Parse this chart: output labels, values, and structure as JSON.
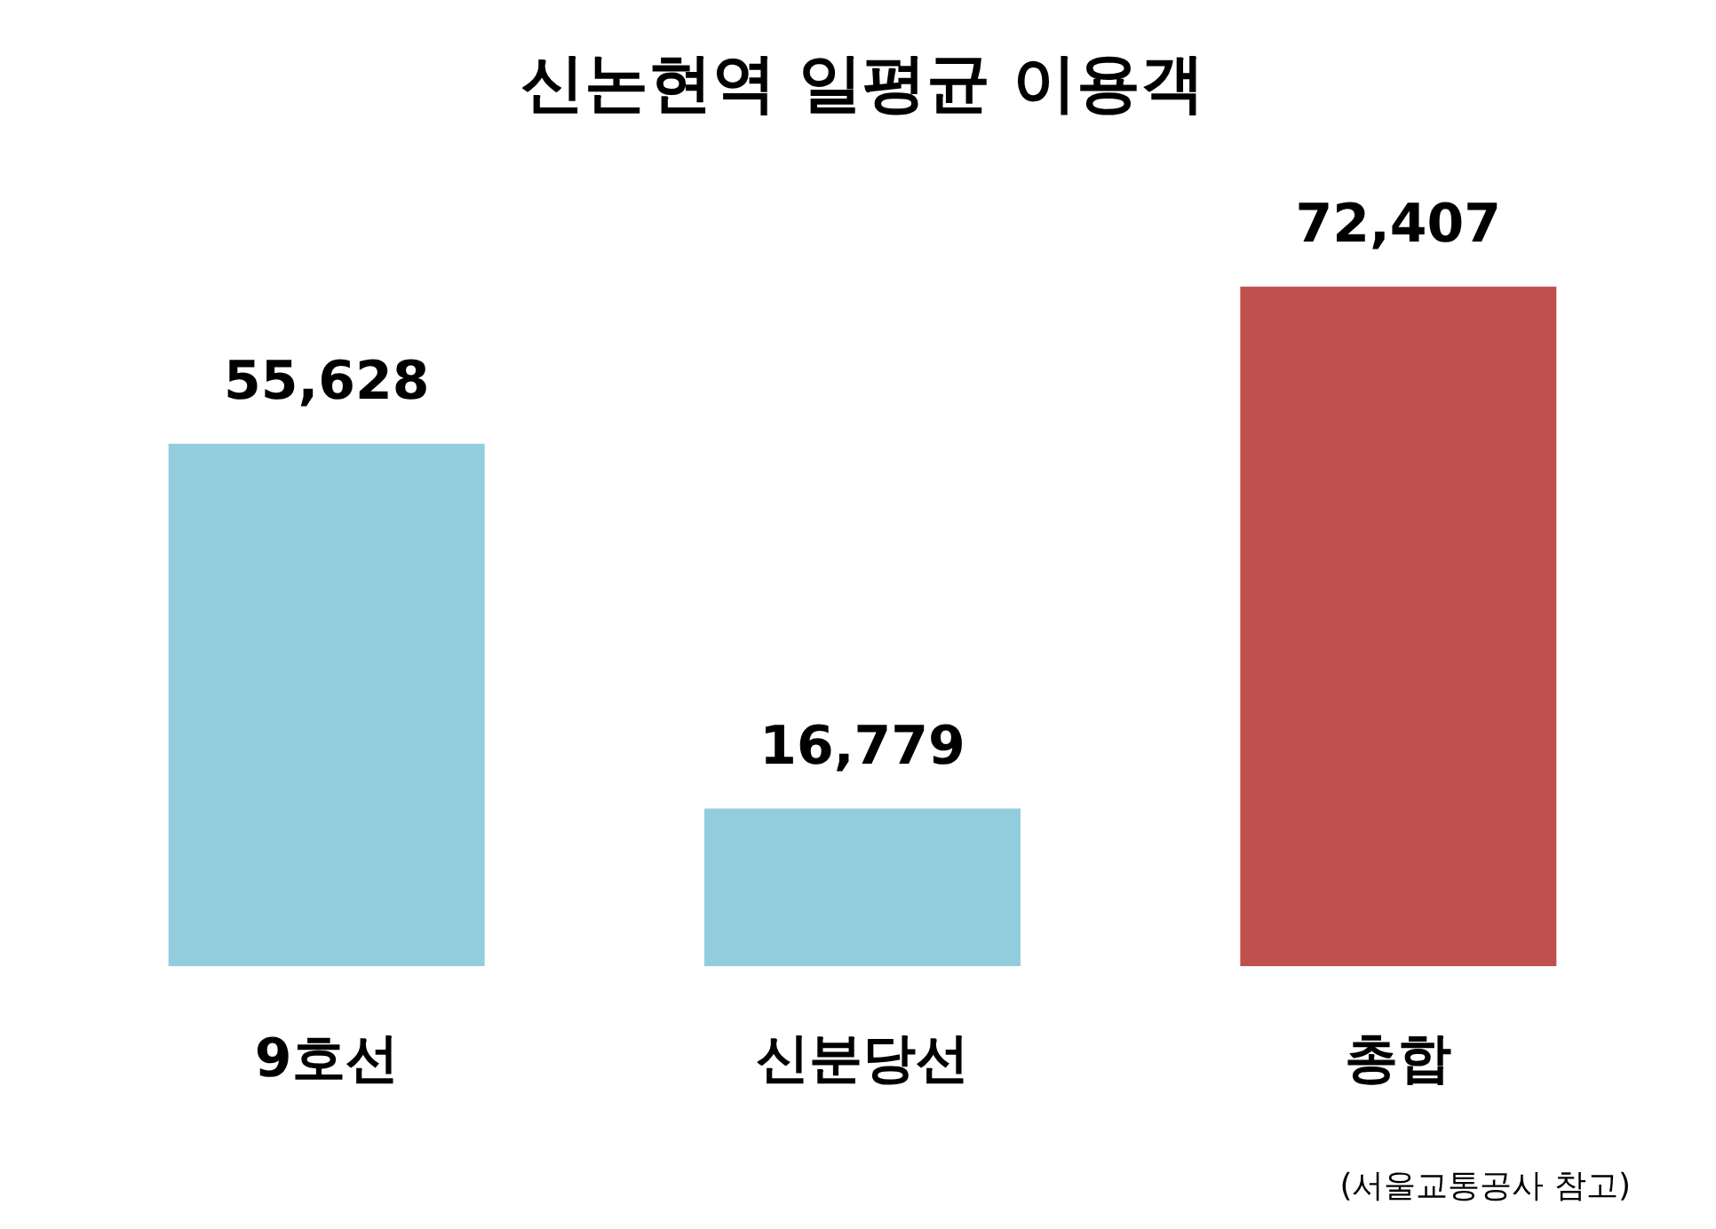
{
  "chart_data": {
    "type": "bar",
    "title": "신논현역 일평균 이용객",
    "categories": [
      "9호선",
      "신분당선",
      "총합"
    ],
    "values": [
      55628,
      16779,
      72407
    ],
    "colors": [
      "#92cddd",
      "#92cddd",
      "#c0504d"
    ],
    "value_labels": [
      "55,628",
      "16,779",
      "72,407"
    ],
    "annotations": [
      "(서울교통공사 참고)"
    ]
  }
}
